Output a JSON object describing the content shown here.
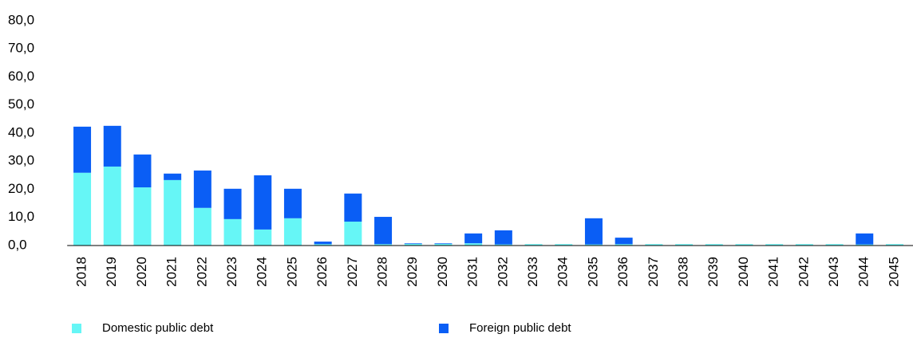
{
  "chart_data": {
    "type": "bar",
    "stacked": true,
    "categories": [
      "2018",
      "2019",
      "2020",
      "2021",
      "2022",
      "2023",
      "2024",
      "2025",
      "2026",
      "2027",
      "2028",
      "2029",
      "2030",
      "2031",
      "2032",
      "2033",
      "2034",
      "2035",
      "2036",
      "2037",
      "2038",
      "2039",
      "2040",
      "2041",
      "2042",
      "2043",
      "2044",
      "2045"
    ],
    "series": [
      {
        "name": "Domestic public debt",
        "color": "#66f6f6",
        "values": [
          25.9,
          28.1,
          20.7,
          23.3,
          13.4,
          9.4,
          5.7,
          9.7,
          0.5,
          8.5,
          0.5,
          0.6,
          0.6,
          0.8,
          0.4,
          0.5,
          0.5,
          0.4,
          0.5,
          0.5,
          0.5,
          0.5,
          0.5,
          0.5,
          0.5,
          0.5,
          0.4,
          0.5
        ]
      },
      {
        "name": "Foreign public debt",
        "color": "#0a5ef5",
        "values": [
          16.4,
          14.5,
          11.7,
          2.3,
          13.3,
          10.8,
          19.3,
          10.5,
          0.9,
          10.0,
          9.7,
          0.2,
          0.2,
          3.5,
          5.0,
          0,
          0,
          9.3,
          2.3,
          0,
          0,
          0,
          0,
          0,
          0,
          0,
          3.9,
          0
        ]
      }
    ],
    "ylim": [
      0,
      80
    ],
    "yticks": [
      {
        "value": 0,
        "label": "0,0"
      },
      {
        "value": 10,
        "label": "10,0"
      },
      {
        "value": 20,
        "label": "20,0"
      },
      {
        "value": 30,
        "label": "30,0"
      },
      {
        "value": 40,
        "label": "40,0"
      },
      {
        "value": 50,
        "label": "50,0"
      },
      {
        "value": 60,
        "label": "60,0"
      },
      {
        "value": 70,
        "label": "70,0"
      },
      {
        "value": 80,
        "label": "80,0"
      }
    ],
    "grid": false,
    "legend": "bottom"
  }
}
